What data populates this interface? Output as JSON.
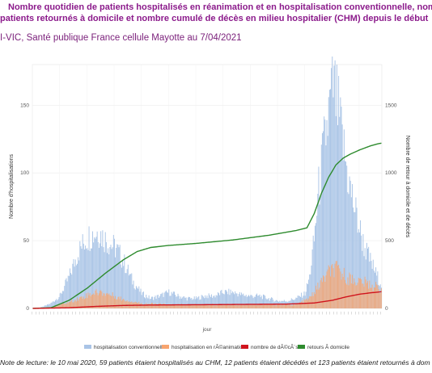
{
  "header": {
    "title_line1": "Nombre quotidien de patients hospitalisés en réanimation et en hospitalisation conventionnelle, nom",
    "title_line2": "patients retournés à domicile et nombre cumulé de décès en milieu hospitalier (CHM) depuis le début",
    "source": "I-VIC, Santé publique France cellule Mayotte au 7/04/2021"
  },
  "note": "Note de lecture: le 10 mai 2020, 59 patients étaient hospitalisés au CHM, 12 patients étaient décédés et 123 patients étaient retournés à dom",
  "colors": {
    "conventionnelle": "#a9c4e6",
    "reanimation": "#f7a46f",
    "deces": "#d0141d",
    "retours": "#2e8b2e"
  },
  "chart_data": {
    "type": "bar",
    "xlabel": "jour",
    "ylabel_left": "Nombre d'hospitalisations",
    "ylabel_right": "Nombre de retour à domicile et de décès",
    "ylim_left": [
      0,
      180
    ],
    "ylim_right": [
      0,
      1800
    ],
    "yticks_left": [
      "0",
      "50",
      "100",
      "150"
    ],
    "yticks_right": [
      "0",
      "500",
      "1000",
      "1500"
    ],
    "grid": true,
    "legend_position": "bottom",
    "n_days": 385,
    "series": [
      {
        "name": "hospitalisation conventionnelle",
        "kind": "bar",
        "axis": "left",
        "keypoints": [
          [
            0,
            0
          ],
          [
            10,
            1
          ],
          [
            20,
            4
          ],
          [
            30,
            10
          ],
          [
            40,
            25
          ],
          [
            50,
            45
          ],
          [
            58,
            55
          ],
          [
            62,
            58
          ],
          [
            68,
            60
          ],
          [
            72,
            62
          ],
          [
            78,
            57
          ],
          [
            85,
            52
          ],
          [
            92,
            48
          ],
          [
            100,
            38
          ],
          [
            110,
            22
          ],
          [
            120,
            12
          ],
          [
            130,
            8
          ],
          [
            140,
            10
          ],
          [
            150,
            13
          ],
          [
            160,
            10
          ],
          [
            170,
            8
          ],
          [
            180,
            8
          ],
          [
            190,
            10
          ],
          [
            200,
            10
          ],
          [
            210,
            13
          ],
          [
            220,
            13
          ],
          [
            230,
            11
          ],
          [
            240,
            10
          ],
          [
            250,
            10
          ],
          [
            260,
            8
          ],
          [
            270,
            6
          ],
          [
            280,
            6
          ],
          [
            290,
            8
          ],
          [
            300,
            12
          ],
          [
            305,
            25
          ],
          [
            310,
            55
          ],
          [
            315,
            95
          ],
          [
            320,
            125
          ],
          [
            325,
            150
          ],
          [
            328,
            165
          ],
          [
            331,
            178
          ],
          [
            334,
            168
          ],
          [
            338,
            150
          ],
          [
            343,
            125
          ],
          [
            350,
            95
          ],
          [
            358,
            70
          ],
          [
            365,
            50
          ],
          [
            372,
            38
          ],
          [
            380,
            25
          ],
          [
            384,
            20
          ]
        ]
      },
      {
        "name": "hospitalisation en rÃ©animation",
        "kind": "bar",
        "axis": "left",
        "keypoints": [
          [
            0,
            0
          ],
          [
            20,
            1
          ],
          [
            40,
            5
          ],
          [
            55,
            9
          ],
          [
            65,
            12
          ],
          [
            72,
            13
          ],
          [
            80,
            12
          ],
          [
            90,
            10
          ],
          [
            100,
            7
          ],
          [
            120,
            4
          ],
          [
            150,
            3
          ],
          [
            200,
            3
          ],
          [
            250,
            3
          ],
          [
            290,
            3
          ],
          [
            305,
            8
          ],
          [
            315,
            18
          ],
          [
            322,
            25
          ],
          [
            328,
            30
          ],
          [
            334,
            31
          ],
          [
            340,
            28
          ],
          [
            348,
            24
          ],
          [
            358,
            22
          ],
          [
            368,
            20
          ],
          [
            376,
            18
          ],
          [
            384,
            15
          ]
        ]
      },
      {
        "name": "nombre de dÃ©cÃ¨s",
        "kind": "line",
        "axis": "right",
        "keypoints": [
          [
            0,
            0
          ],
          [
            40,
            5
          ],
          [
            70,
            15
          ],
          [
            100,
            22
          ],
          [
            130,
            25
          ],
          [
            200,
            28
          ],
          [
            280,
            32
          ],
          [
            310,
            40
          ],
          [
            330,
            60
          ],
          [
            345,
            85
          ],
          [
            360,
            105
          ],
          [
            372,
            115
          ],
          [
            384,
            123
          ]
        ]
      },
      {
        "name": "retours Ã  domicile",
        "kind": "line",
        "axis": "right",
        "keypoints": [
          [
            0,
            0
          ],
          [
            20,
            5
          ],
          [
            40,
            60
          ],
          [
            60,
            150
          ],
          [
            80,
            260
          ],
          [
            100,
            360
          ],
          [
            115,
            420
          ],
          [
            130,
            450
          ],
          [
            150,
            465
          ],
          [
            180,
            480
          ],
          [
            220,
            505
          ],
          [
            260,
            540
          ],
          [
            290,
            575
          ],
          [
            302,
            595
          ],
          [
            310,
            700
          ],
          [
            318,
            850
          ],
          [
            326,
            970
          ],
          [
            334,
            1060
          ],
          [
            342,
            1110
          ],
          [
            350,
            1140
          ],
          [
            360,
            1170
          ],
          [
            372,
            1200
          ],
          [
            380,
            1215
          ],
          [
            384,
            1220
          ]
        ]
      }
    ],
    "annotation": {
      "date": "10 mai 2020",
      "hospitalises": 59,
      "deces": 12,
      "retours": 123
    }
  }
}
